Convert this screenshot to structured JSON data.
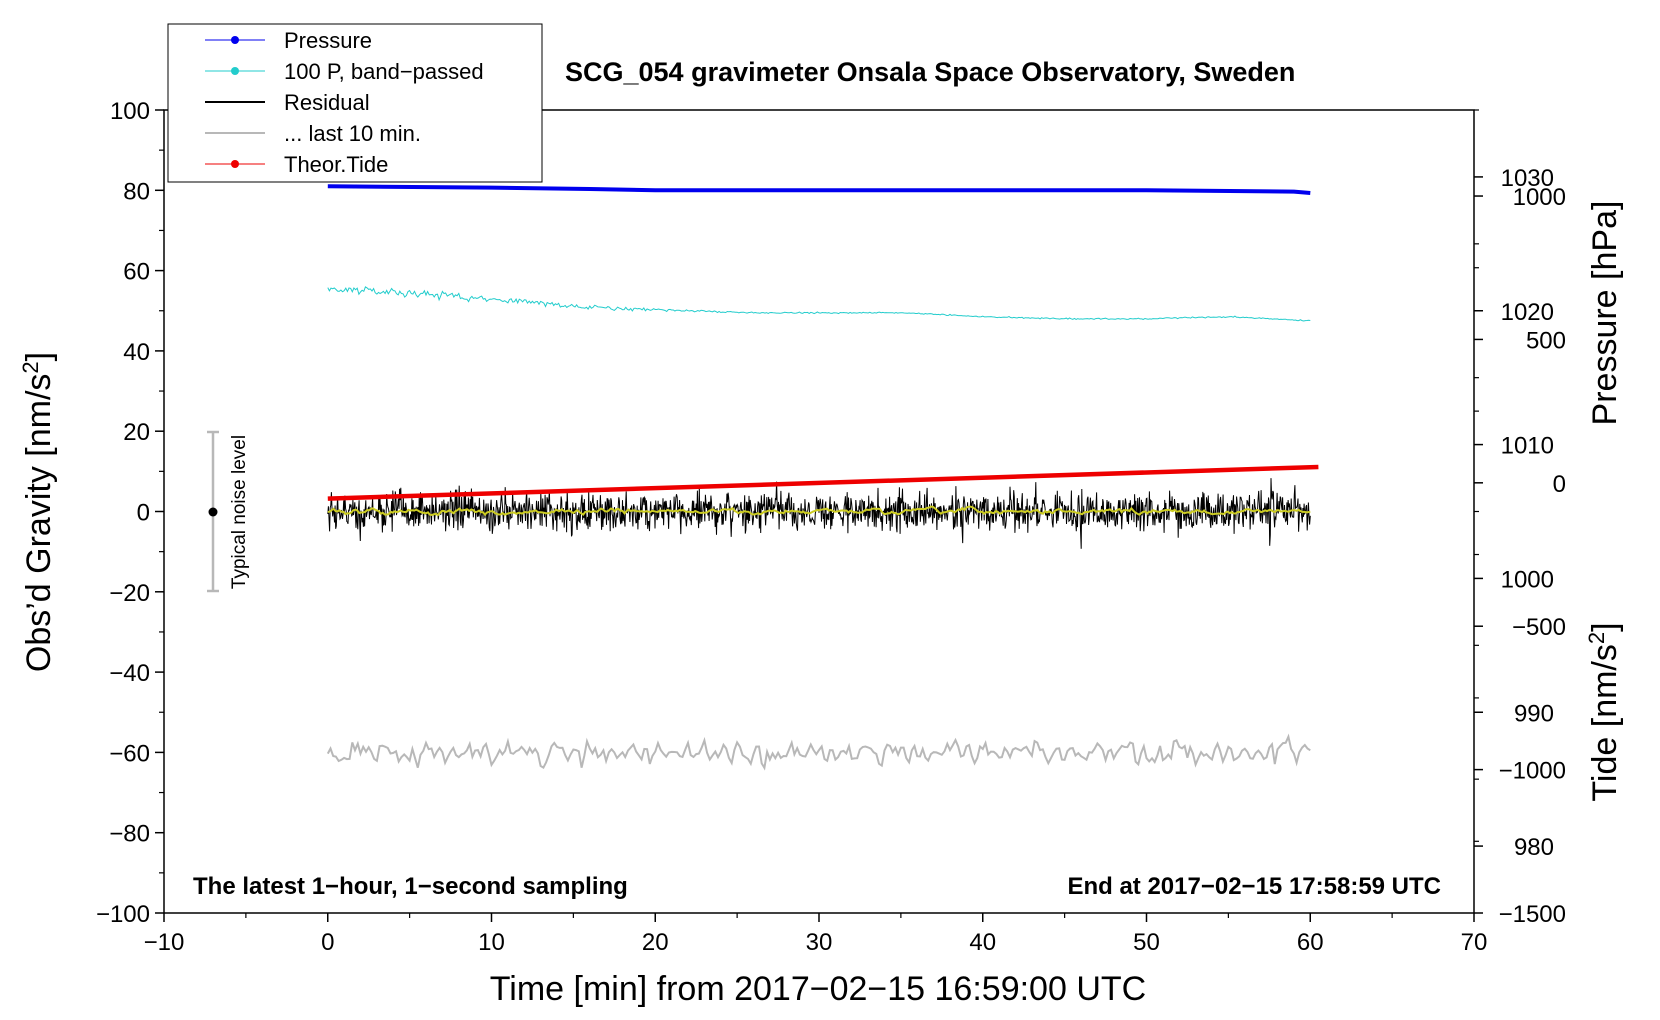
{
  "chart_data": {
    "type": "line",
    "title": "SCG_054 gravimeter Onsala Space Observatory, Sweden",
    "xlabel": "Time [min] from 2017−02−15 16:59:00 UTC",
    "ylabel_left": "Obs’d Gravity [nm/s",
    "ylabel_left_sup": "2",
    "ylabel_left_tail": "]",
    "ylabel_right_pressure": "Pressure [hPa]",
    "ylabel_right_tide": "Tide [nm/s",
    "ylabel_right_tide_sup": "2",
    "ylabel_right_tide_tail": "]",
    "xlim": [
      -10,
      70
    ],
    "ylim": [
      -100,
      100
    ],
    "pressure_axis_range": [
      975,
      1035
    ],
    "tide_axis_range": [
      -1500,
      1300
    ],
    "x_ticks": [
      -10,
      0,
      10,
      20,
      30,
      40,
      50,
      60,
      70
    ],
    "x_tick_labels": [
      "−10",
      "0",
      "10",
      "20",
      "30",
      "40",
      "50",
      "60",
      "70"
    ],
    "y_ticks": [
      -100,
      -80,
      -60,
      -40,
      -20,
      0,
      20,
      40,
      60,
      80,
      100
    ],
    "y_tick_labels": [
      "−100",
      "−80",
      "−60",
      "−40",
      "−20",
      "0",
      "20",
      "40",
      "60",
      "80",
      "100"
    ],
    "pressure_ticks": [
      980,
      990,
      1000,
      1010,
      1020,
      1030
    ],
    "pressure_tick_labels": [
      "980",
      "990",
      "1000",
      "1010",
      "1020",
      "1030"
    ],
    "tide_ticks": [
      -1500,
      -1000,
      -500,
      0,
      500,
      1000
    ],
    "tide_tick_labels": [
      "−1500",
      "−1000",
      "−500",
      "0",
      "500",
      "1000"
    ],
    "legend": {
      "position": "top-left",
      "entries": [
        {
          "name": "Pressure",
          "color": "#0000ee",
          "marker": true
        },
        {
          "name": "100 P, band−passed",
          "color": "#22cccc",
          "marker": true
        },
        {
          "name": "Residual",
          "color": "#000000",
          "marker": false
        },
        {
          "name": "... last 10 min.",
          "color": "#b8b8b8",
          "marker": false
        },
        {
          "name": "Theor.Tide",
          "color": "#ee0000",
          "marker": true
        }
      ]
    },
    "series": [
      {
        "name": "Pressure",
        "axis": "pressure_hPa",
        "color": "#0000ee",
        "x": [
          0,
          10,
          16,
          20,
          30,
          40,
          50,
          59,
          60
        ],
        "values": [
          1029.3,
          1029.2,
          1029.1,
          1029.0,
          1029.0,
          1029.0,
          1029.0,
          1028.9,
          1028.8
        ]
      },
      {
        "name": "100 P, band−passed",
        "axis": "gravity_nm_s2",
        "color": "#22cccc",
        "x": [
          0,
          2,
          5,
          8,
          10,
          14,
          18,
          22,
          26,
          30,
          35,
          40,
          45,
          50,
          55,
          60
        ],
        "values": [
          55.5,
          55,
          54.5,
          53.5,
          53,
          51.5,
          50.5,
          50,
          49.5,
          49.5,
          49.5,
          48.5,
          48,
          48,
          48.5,
          47.5
        ]
      },
      {
        "name": "Residual",
        "axis": "gravity_nm_s2",
        "color": "#000000",
        "x_range": [
          0,
          60
        ],
        "mean": 0,
        "amplitude_range": [
          -13,
          14
        ]
      },
      {
        "name": "Residual (smoothed)",
        "axis": "gravity_nm_s2",
        "color": "#cccc22",
        "x_range": [
          0,
          60
        ],
        "mean": 0
      },
      {
        "name": "Theor.Tide",
        "axis": "tide_nm_s2",
        "color": "#ee0000",
        "x": [
          0,
          60.5
        ],
        "values": [
          -55,
          55
        ]
      },
      {
        "name": "... last 10 min.",
        "axis": "gravity_nm_s2",
        "color": "#b8b8b8",
        "x_range": [
          0,
          60
        ],
        "baseline": -60,
        "amplitude_range": [
          -72,
          -52
        ]
      }
    ],
    "noise_bar": {
      "label": "Typical noise level",
      "x": -7,
      "center": 0,
      "range": [
        -20,
        20
      ]
    },
    "annotations": {
      "bottom_left": "The latest 1−hour, 1−second sampling",
      "bottom_right": "End at 2017−02−15 17:58:59 UTC"
    }
  }
}
